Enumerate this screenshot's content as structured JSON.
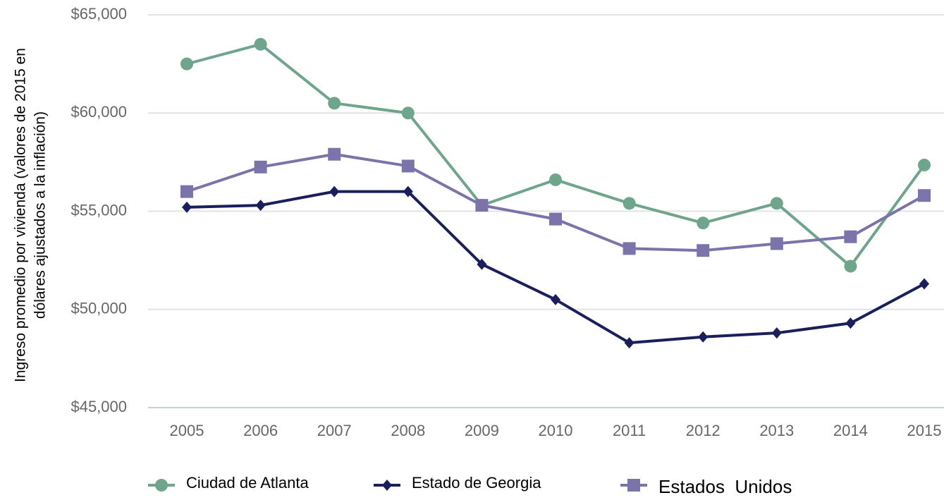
{
  "chart_data": {
    "type": "line",
    "ylabel": [
      "Ingreso promedio por vivienda (valores de 2015 en",
      "dólares ajustados a la inflación)"
    ],
    "categories": [
      "2005",
      "2006",
      "2007",
      "2008",
      "2009",
      "2010",
      "2011",
      "2012",
      "2013",
      "2014",
      "2015"
    ],
    "series": [
      {
        "name": "Ciudad de Atlanta",
        "color": "#6fa58c",
        "marker": "circle",
        "values": [
          62500,
          63500,
          60500,
          60000,
          55300,
          56600,
          55400,
          54400,
          55400,
          52200,
          57350
        ]
      },
      {
        "name": "Estado de Georgia",
        "color": "#1a1f5c",
        "marker": "diamond",
        "values": [
          55200,
          55300,
          56000,
          56000,
          52300,
          50500,
          48300,
          48600,
          48800,
          49300,
          51300
        ]
      },
      {
        "name": "Estados  Unidos",
        "color": "#7b74ab",
        "marker": "square",
        "values": [
          56000,
          57250,
          57900,
          57300,
          55300,
          54600,
          53100,
          53000,
          53350,
          53700,
          55800
        ]
      }
    ],
    "ylim": [
      45000,
      65000
    ],
    "yticks": [
      {
        "value": 45000,
        "label": "$45,000"
      },
      {
        "value": 50000,
        "label": "$50,000"
      },
      {
        "value": 55000,
        "label": "$55,000"
      },
      {
        "value": 60000,
        "label": "$60,000"
      },
      {
        "value": 65000,
        "label": "$65,000"
      }
    ],
    "grid": true,
    "legend": "bottom"
  }
}
